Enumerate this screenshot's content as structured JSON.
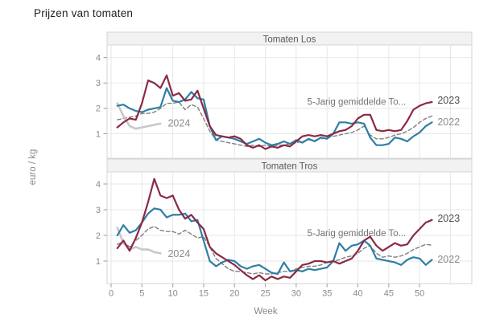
{
  "title": "Prijzen van tomaten",
  "axes": {
    "xlabel": "Week",
    "ylabel": "euro / kg",
    "x_ticks": [
      0,
      5,
      10,
      15,
      20,
      25,
      30,
      35,
      40,
      45,
      50
    ],
    "y_ticks": [
      1,
      2,
      3,
      4
    ]
  },
  "colors": {
    "series_2023": "#8a2a44",
    "series_avg": "#2e7fa5",
    "series_2022": "#808080",
    "series_2024": "#c8c8c8",
    "grid": "#e7e7e7",
    "panel_border": "#d4d4d4",
    "header_bg": "#f2f2f2",
    "header_text": "#595959",
    "axis_text": "#8a8a8a",
    "label_dark": "#4d4d4d",
    "label_gray": "#8c8c8c",
    "label_mid": "#737373"
  },
  "chart_data": [
    {
      "type": "line",
      "panel": "Tomaten Los",
      "xlabel": "Week",
      "ylabel": "euro / kg",
      "x": [
        1,
        2,
        3,
        4,
        5,
        6,
        7,
        8,
        9,
        10,
        11,
        12,
        13,
        14,
        15,
        16,
        17,
        18,
        19,
        20,
        21,
        22,
        23,
        24,
        25,
        26,
        27,
        28,
        29,
        30,
        31,
        32,
        33,
        34,
        35,
        36,
        37,
        38,
        39,
        40,
        41,
        42,
        43,
        44,
        45,
        46,
        47,
        48,
        49,
        50,
        51,
        52
      ],
      "ylim": [
        0,
        4.5
      ],
      "series": [
        {
          "name": "2022",
          "style": "dashed",
          "color_key": "series_2022",
          "values": [
            1.55,
            1.6,
            1.65,
            1.7,
            1.8,
            1.8,
            1.85,
            2.0,
            2.2,
            2.2,
            2.25,
            1.95,
            2.15,
            2.05,
            1.6,
            1.1,
            0.75,
            0.7,
            0.65,
            0.6,
            0.55,
            0.5,
            0.55,
            0.5,
            0.55,
            0.5,
            0.55,
            0.55,
            0.6,
            0.65,
            0.7,
            0.75,
            0.75,
            0.8,
            0.85,
            0.9,
            0.95,
            1.0,
            1.05,
            1.15,
            1.3,
            0.95,
            0.8,
            0.8,
            0.85,
            0.95,
            1.0,
            1.1,
            1.25,
            1.45,
            1.6,
            1.7
          ]
        },
        {
          "name": "2024",
          "style": "solid",
          "color_key": "series_2024",
          "values": [
            2.2,
            1.7,
            1.3,
            1.2,
            1.25,
            1.3,
            1.35,
            1.4,
            null,
            null,
            null,
            null,
            null,
            null,
            null,
            null,
            null,
            null,
            null,
            null,
            null,
            null,
            null,
            null,
            null,
            null,
            null,
            null,
            null,
            null,
            null,
            null,
            null,
            null,
            null,
            null,
            null,
            null,
            null,
            null,
            null,
            null,
            null,
            null,
            null,
            null,
            null,
            null,
            null,
            null,
            null,
            null
          ]
        },
        {
          "name": "5-Jarig gemiddelde To...",
          "style": "solid",
          "color_key": "series_avg",
          "values": [
            2.1,
            2.15,
            2.0,
            1.9,
            1.85,
            1.95,
            2.0,
            2.05,
            2.8,
            2.3,
            2.25,
            2.35,
            2.65,
            2.4,
            2.35,
            1.3,
            0.75,
            0.9,
            0.85,
            0.8,
            0.7,
            0.6,
            0.7,
            0.8,
            0.65,
            0.55,
            0.6,
            0.7,
            0.6,
            0.75,
            0.65,
            0.8,
            0.7,
            0.85,
            0.8,
            1.0,
            1.45,
            1.45,
            1.4,
            1.45,
            1.4,
            0.85,
            0.55,
            0.55,
            0.6,
            0.85,
            0.8,
            0.7,
            0.9,
            1.05,
            1.3,
            1.45
          ]
        },
        {
          "name": "2023",
          "style": "solid",
          "color_key": "series_2023",
          "values": [
            1.25,
            1.45,
            1.6,
            1.55,
            2.2,
            3.1,
            3.0,
            2.8,
            3.3,
            2.5,
            2.6,
            2.3,
            2.35,
            2.7,
            2.0,
            1.3,
            0.95,
            0.9,
            0.85,
            0.9,
            0.8,
            0.55,
            0.45,
            0.55,
            0.4,
            0.5,
            0.45,
            0.55,
            0.5,
            0.7,
            0.9,
            0.95,
            0.9,
            0.95,
            0.9,
            1.0,
            1.1,
            1.15,
            1.3,
            1.6,
            1.75,
            1.75,
            1.15,
            1.1,
            1.15,
            1.1,
            1.15,
            1.5,
            1.95,
            2.1,
            2.2,
            2.25
          ]
        }
      ],
      "annotations": [
        {
          "text": "5-Jarig gemiddelde To...",
          "week": 31.8,
          "value": 2.27,
          "size": 11.5,
          "color_key": "label_mid"
        },
        {
          "text": "2023",
          "week": 52.9,
          "value": 2.33,
          "size": 12.5,
          "color_key": "label_dark"
        },
        {
          "text": "2022",
          "week": 52.9,
          "value": 1.47,
          "size": 12.5,
          "color_key": "label_gray"
        },
        {
          "text": "2024",
          "week": 9.2,
          "value": 1.42,
          "size": 12.5,
          "color_key": "label_gray"
        }
      ]
    },
    {
      "type": "line",
      "panel": "Tomaten Tros",
      "xlabel": "Week",
      "ylabel": "euro / kg",
      "x": [
        1,
        2,
        3,
        4,
        5,
        6,
        7,
        8,
        9,
        10,
        11,
        12,
        13,
        14,
        15,
        16,
        17,
        18,
        19,
        20,
        21,
        22,
        23,
        24,
        25,
        26,
        27,
        28,
        29,
        30,
        31,
        32,
        33,
        34,
        35,
        36,
        37,
        38,
        39,
        40,
        41,
        42,
        43,
        44,
        45,
        46,
        47,
        48,
        49,
        50,
        51,
        52
      ],
      "ylim": [
        0,
        4.5
      ],
      "series": [
        {
          "name": "2022",
          "style": "dashed",
          "color_key": "series_2022",
          "values": [
            1.65,
            1.75,
            1.55,
            1.8,
            2.0,
            2.25,
            2.35,
            2.2,
            2.15,
            2.15,
            2.05,
            2.2,
            2.05,
            1.9,
            1.95,
            1.55,
            1.1,
            0.9,
            0.7,
            0.6,
            0.6,
            0.55,
            0.5,
            0.55,
            0.5,
            0.5,
            0.55,
            0.6,
            0.6,
            0.7,
            0.75,
            0.8,
            0.8,
            0.85,
            0.95,
            1.0,
            1.05,
            1.15,
            1.2,
            1.3,
            1.5,
            1.6,
            1.3,
            1.15,
            1.2,
            1.15,
            1.2,
            1.3,
            1.45,
            1.55,
            1.65,
            1.62
          ]
        },
        {
          "name": "2024",
          "style": "solid",
          "color_key": "series_2024",
          "values": [
            2.3,
            1.7,
            1.45,
            1.55,
            1.45,
            1.45,
            1.35,
            1.3,
            null,
            null,
            null,
            null,
            null,
            null,
            null,
            null,
            null,
            null,
            null,
            null,
            null,
            null,
            null,
            null,
            null,
            null,
            null,
            null,
            null,
            null,
            null,
            null,
            null,
            null,
            null,
            null,
            null,
            null,
            null,
            null,
            null,
            null,
            null,
            null,
            null,
            null,
            null,
            null,
            null,
            null,
            null,
            null
          ]
        },
        {
          "name": "5-Jarig gemiddelde To...",
          "style": "solid",
          "color_key": "series_avg",
          "values": [
            2.0,
            2.4,
            2.1,
            2.2,
            2.5,
            2.85,
            3.05,
            3.0,
            2.7,
            2.8,
            2.8,
            2.85,
            2.55,
            2.6,
            1.8,
            1.0,
            0.8,
            0.95,
            1.05,
            1.0,
            0.8,
            0.7,
            0.8,
            0.85,
            0.7,
            0.55,
            0.5,
            0.95,
            0.6,
            0.65,
            0.6,
            0.7,
            0.65,
            0.7,
            0.75,
            1.0,
            1.7,
            1.4,
            1.6,
            1.65,
            1.8,
            1.6,
            1.1,
            1.05,
            1.0,
            0.95,
            0.85,
            1.05,
            1.15,
            1.1,
            0.85,
            1.05
          ]
        },
        {
          "name": "2023",
          "style": "solid",
          "color_key": "series_2023",
          "values": [
            1.5,
            1.8,
            1.4,
            1.9,
            2.5,
            3.3,
            4.2,
            3.55,
            3.45,
            3.55,
            3.0,
            2.65,
            2.8,
            2.5,
            2.25,
            1.55,
            1.3,
            1.15,
            1.0,
            0.85,
            0.65,
            0.45,
            0.3,
            0.45,
            0.25,
            0.4,
            0.3,
            0.4,
            0.35,
            0.6,
            0.85,
            0.9,
            1.0,
            1.0,
            0.95,
            1.0,
            0.9,
            1.0,
            1.1,
            1.4,
            1.8,
            1.95,
            1.6,
            1.4,
            1.55,
            1.7,
            1.6,
            1.65,
            2.0,
            2.25,
            2.5,
            2.6
          ]
        }
      ],
      "annotations": [
        {
          "text": "5-Jarig gemiddelde To...",
          "week": 31.8,
          "value": 2.1,
          "size": 11.5,
          "color_key": "label_mid"
        },
        {
          "text": "2023",
          "week": 52.9,
          "value": 2.67,
          "size": 12.5,
          "color_key": "label_dark"
        },
        {
          "text": "2022",
          "week": 52.9,
          "value": 1.07,
          "size": 12.5,
          "color_key": "label_gray"
        },
        {
          "text": "2024",
          "week": 9.2,
          "value": 1.3,
          "size": 12.5,
          "color_key": "label_gray"
        }
      ]
    }
  ]
}
